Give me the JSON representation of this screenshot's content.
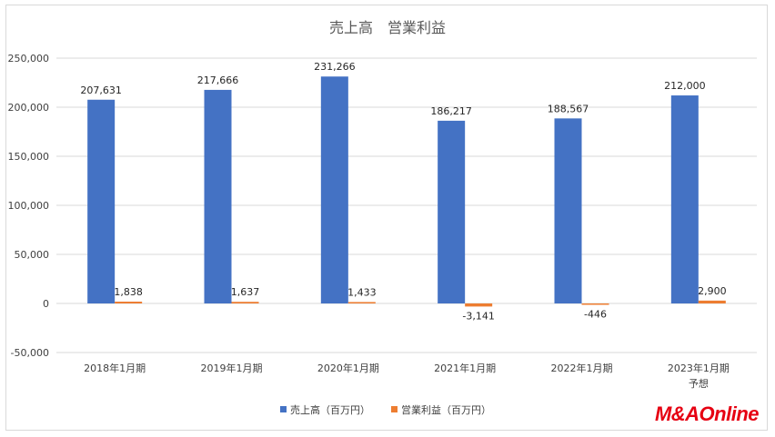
{
  "chart_data": {
    "type": "bar",
    "title": "売上高　営業利益",
    "categories": [
      [
        "2018年1月期"
      ],
      [
        "2019年1月期"
      ],
      [
        "2020年1月期"
      ],
      [
        "2021年1月期"
      ],
      [
        "2022年1月期"
      ],
      [
        "2023年1月期",
        "予想"
      ]
    ],
    "series": [
      {
        "name": "売上高（百万円）",
        "color": "#4472c4",
        "values": [
          207631,
          217666,
          231266,
          186217,
          188567,
          212000
        ],
        "labels": [
          "207,631",
          "217,666",
          "231,266",
          "186,217",
          "188,567",
          "212,000"
        ]
      },
      {
        "name": "営業利益（百万円）",
        "color": "#ed7d31",
        "values": [
          1838,
          1637,
          1433,
          -3141,
          -446,
          2900
        ],
        "labels": [
          "1,838",
          "1,637",
          "1,433",
          "-3,141",
          "-446",
          "2,900"
        ]
      }
    ],
    "ylim": [
      -50000,
      250000
    ],
    "yticks": [
      -50000,
      0,
      50000,
      100000,
      150000,
      200000,
      250000
    ],
    "ytick_labels": [
      "-50,000",
      "0",
      "50,000",
      "100,000",
      "150,000",
      "200,000",
      "250,000"
    ],
    "negative_color": "#ff0000",
    "grid": true,
    "legend_position": "bottom"
  },
  "logo": {
    "brand": "M&A",
    "suffix": "Online"
  }
}
